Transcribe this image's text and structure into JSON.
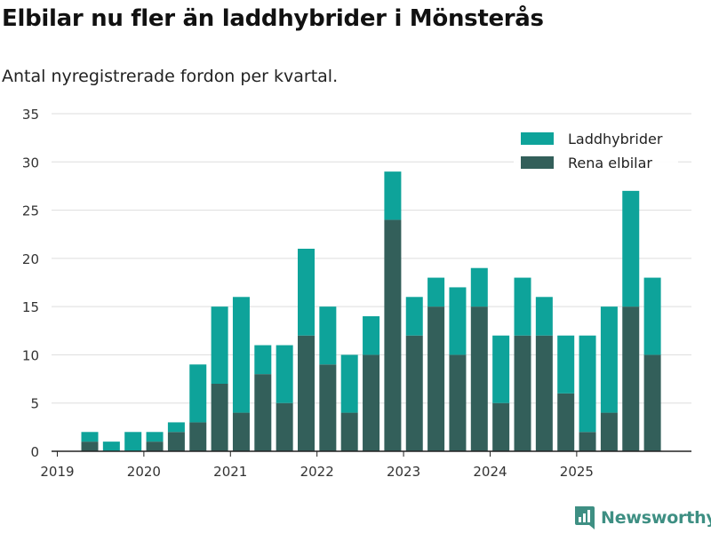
{
  "chart_data": {
    "type": "bar",
    "stacked": true,
    "title": "Elbilar nu fler än laddhybrider i Mönsterås",
    "subtitle": "Antal nyregistrerade fordon per kvartal.",
    "xlabel": "",
    "ylabel": "",
    "ylim": [
      0,
      35
    ],
    "yticks": [
      0,
      5,
      10,
      15,
      20,
      25,
      30,
      35
    ],
    "xtick_labels": [
      "2019",
      "2020",
      "2021",
      "2022",
      "2023",
      "2024",
      "2025"
    ],
    "categories": [
      "2019 Q2",
      "2019 Q3",
      "2019 Q4",
      "2020 Q1",
      "2020 Q2",
      "2020 Q3",
      "2020 Q4",
      "2021 Q1",
      "2021 Q2",
      "2021 Q3",
      "2021 Q4",
      "2022 Q1",
      "2022 Q2",
      "2022 Q3",
      "2022 Q4",
      "2023 Q1",
      "2023 Q2",
      "2023 Q3",
      "2023 Q4",
      "2024 Q1",
      "2024 Q2",
      "2024 Q3",
      "2024 Q4",
      "2025 Q1",
      "2025 Q2",
      "2025 Q3",
      "2025 Q4"
    ],
    "series": [
      {
        "name": "Rena elbilar",
        "color": "#335f5a",
        "values": [
          1,
          0,
          0,
          1,
          2,
          3,
          7,
          4,
          8,
          5,
          12,
          9,
          4,
          10,
          24,
          12,
          15,
          10,
          15,
          5,
          12,
          12,
          6,
          2,
          4,
          15,
          10
        ]
      },
      {
        "name": "Laddhybrider",
        "color": "#0ea39a",
        "values": [
          1,
          1,
          2,
          1,
          1,
          6,
          8,
          12,
          3,
          6,
          9,
          6,
          6,
          4,
          5,
          4,
          3,
          7,
          4,
          7,
          6,
          4,
          6,
          10,
          11,
          12,
          8
        ]
      }
    ],
    "legend": [
      "Laddhybrider",
      "Rena elbilar"
    ],
    "legend_position": "top-right",
    "grid": true
  },
  "branding": {
    "logo_text": "Newsworthy"
  }
}
